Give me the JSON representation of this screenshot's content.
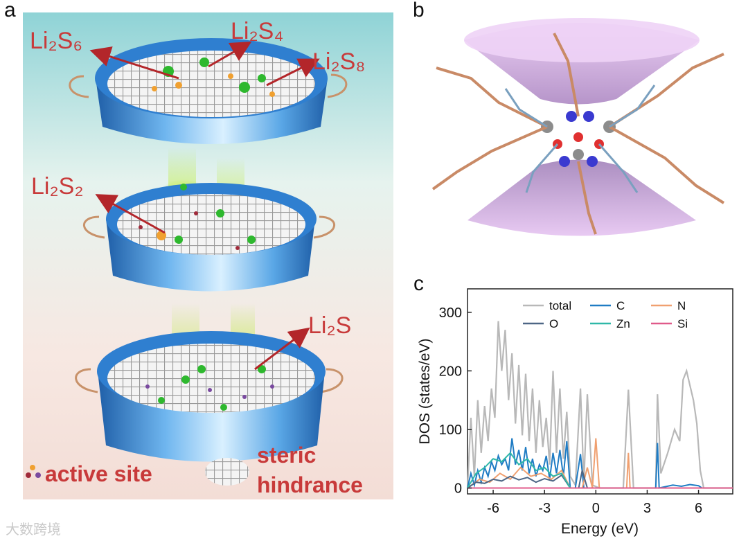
{
  "panels": {
    "a": {
      "label": "a",
      "species": {
        "li2s6": "Li₂S₆",
        "li2s4": "Li₂S₄",
        "li2s8": "Li₂S₈",
        "li2s2": "Li₂S₂",
        "li2s": "Li₂S"
      },
      "legend": {
        "active_site": "active site",
        "steric_line1": "steric",
        "steric_line2": "hindrance"
      }
    },
    "b": {
      "label": "b"
    },
    "c": {
      "label": "c"
    }
  },
  "watermark": "大数跨境",
  "colors": {
    "species_text": "#c83a3a",
    "arrow": "#b3262a",
    "tray_blue": "#3a8fd8",
    "sieve_green": "#7ed321",
    "cone_purple": "#d7a6e8"
  },
  "chart_data": {
    "type": "line",
    "title": "",
    "xlabel": "Energy (eV)",
    "ylabel": "DOS (states/eV)",
    "xlim": [
      -7.5,
      8
    ],
    "ylim": [
      -10,
      340
    ],
    "xticks": [
      -6,
      -3,
      0,
      3,
      6
    ],
    "yticks": [
      0,
      100,
      200,
      300
    ],
    "legend_position": "top-right",
    "series": [
      {
        "name": "total",
        "color": "#b8b8b8",
        "x": [
          -7.5,
          -7.3,
          -7.1,
          -6.9,
          -6.7,
          -6.5,
          -6.3,
          -6.1,
          -5.9,
          -5.7,
          -5.5,
          -5.3,
          -5.1,
          -4.9,
          -4.7,
          -4.5,
          -4.3,
          -4.1,
          -3.9,
          -3.7,
          -3.5,
          -3.3,
          -3.1,
          -2.9,
          -2.7,
          -2.5,
          -2.3,
          -2.1,
          -1.9,
          -1.7,
          -1.5,
          -1.2,
          -0.9,
          -0.7,
          -0.5,
          -0.2,
          0.2,
          0.5,
          1.0,
          1.6,
          1.9,
          2.2,
          3.0,
          3.5,
          3.6,
          3.8,
          4.2,
          4.6,
          4.9,
          5.1,
          5.3,
          5.5,
          5.7,
          5.9,
          6.1,
          6.3,
          7.0,
          8.0
        ],
        "y": [
          0,
          120,
          20,
          150,
          60,
          140,
          80,
          170,
          120,
          285,
          200,
          270,
          150,
          230,
          110,
          210,
          90,
          195,
          80,
          170,
          60,
          150,
          70,
          120,
          40,
          200,
          60,
          170,
          50,
          130,
          20,
          5,
          170,
          10,
          160,
          5,
          0,
          0,
          0,
          0,
          168,
          0,
          0,
          0,
          160,
          25,
          60,
          100,
          80,
          185,
          200,
          175,
          150,
          110,
          30,
          0,
          0,
          0
        ]
      },
      {
        "name": "C",
        "color": "#1f7cc4",
        "x": [
          -7.5,
          -7.3,
          -7.1,
          -6.9,
          -6.7,
          -6.5,
          -6.3,
          -6.1,
          -5.9,
          -5.7,
          -5.5,
          -5.3,
          -5.1,
          -4.9,
          -4.7,
          -4.5,
          -4.3,
          -4.1,
          -3.9,
          -3.7,
          -3.5,
          -3.3,
          -3.1,
          -2.9,
          -2.7,
          -2.5,
          -2.3,
          -2.1,
          -1.9,
          -1.7,
          -1.5,
          -1.2,
          -0.9,
          -0.7,
          -0.5,
          -0.2,
          3.0,
          3.5,
          3.6,
          3.7,
          4.5,
          5.0,
          5.5,
          6.0,
          6.2,
          8.0
        ],
        "y": [
          0,
          25,
          5,
          30,
          10,
          35,
          20,
          45,
          30,
          55,
          40,
          50,
          30,
          85,
          40,
          65,
          30,
          70,
          25,
          50,
          20,
          40,
          30,
          55,
          15,
          60,
          25,
          65,
          20,
          80,
          0,
          0,
          58,
          0,
          0,
          0,
          0,
          0,
          77,
          0,
          5,
          3,
          6,
          4,
          0,
          0
        ]
      },
      {
        "name": "N",
        "color": "#f0a070",
        "x": [
          -7.5,
          -6.8,
          -6.2,
          -5.6,
          -5.0,
          -4.4,
          -3.8,
          -3.2,
          -2.6,
          -2.0,
          -1.5,
          -0.8,
          -0.5,
          -0.2,
          0.0,
          0.2,
          1.7,
          1.8,
          1.9,
          2.0,
          3.5,
          3.6,
          3.7,
          8.0
        ],
        "y": [
          0,
          15,
          10,
          25,
          15,
          35,
          20,
          25,
          15,
          30,
          0,
          0,
          35,
          0,
          85,
          0,
          0,
          0,
          60,
          0,
          0,
          0,
          0,
          0
        ]
      },
      {
        "name": "O",
        "color": "#4d6685",
        "x": [
          -7.5,
          -7.0,
          -6.5,
          -6.0,
          -5.5,
          -5.0,
          -4.5,
          -4.0,
          -3.5,
          -3.0,
          -2.5,
          -2.0,
          -1.5,
          -1.0,
          -0.8,
          -0.5,
          8.0
        ],
        "y": [
          0,
          10,
          8,
          15,
          12,
          20,
          14,
          18,
          10,
          16,
          12,
          22,
          0,
          0,
          30,
          0,
          0
        ]
      },
      {
        "name": "Zn",
        "color": "#2fb8a8",
        "x": [
          -7.5,
          -7.0,
          -6.5,
          -6.0,
          -5.5,
          -5.0,
          -4.5,
          -4.0,
          -3.5,
          -3.0,
          -2.5,
          -2.0,
          -1.5,
          8.0
        ],
        "y": [
          0,
          25,
          35,
          50,
          45,
          60,
          40,
          50,
          30,
          35,
          20,
          25,
          0,
          0
        ]
      },
      {
        "name": "Si",
        "color": "#e05a8a",
        "x": [
          -7.5,
          8.0
        ],
        "y": [
          0,
          0
        ]
      }
    ]
  }
}
